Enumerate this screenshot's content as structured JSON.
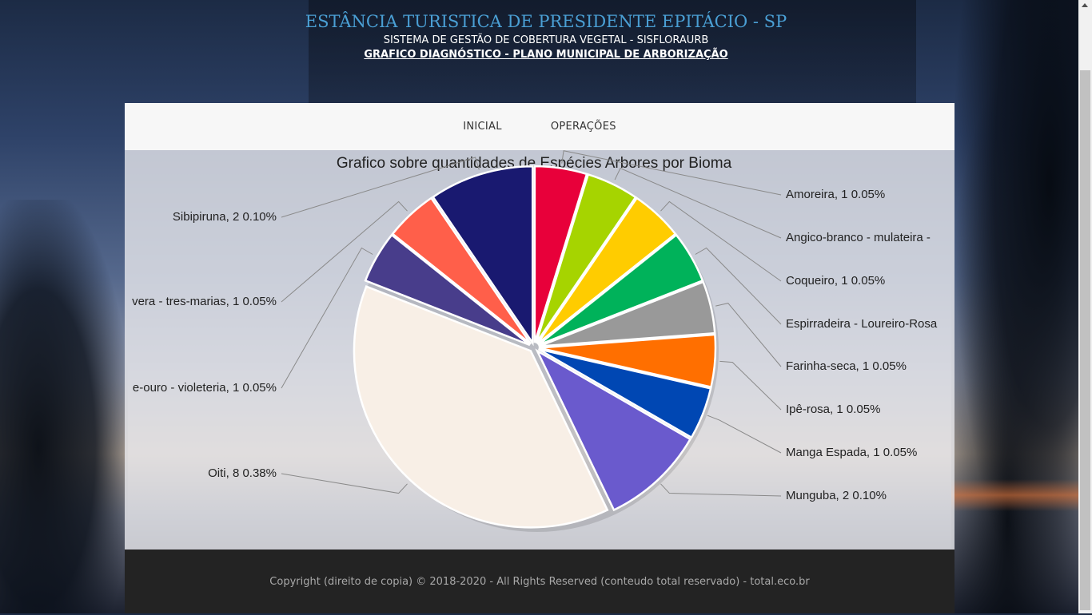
{
  "header": {
    "site_title": "ESTÂNCIA TURISTICA DE PRESIDENTE EPITÁCIO - SP",
    "system_name": "SISTEMA DE GESTÃO DE COBERTURA VEGETAL - SISFLORAURB",
    "page_subtitle": "GRAFICO DIAGNÓSTICO - PLANO MUNICIPAL DE ARBORIZAÇÃO"
  },
  "nav": {
    "items": [
      {
        "label": "INICIAL"
      },
      {
        "label": "OPERAÇÕES"
      }
    ]
  },
  "footer": {
    "copyright": "Copyright (direito de copia) © 2018-2020 - All Rights Reserved (conteudo total reservado) - total.eco.br"
  },
  "chart_data": {
    "type": "pie",
    "title": "Grafico sobre quantidades de Espécies Arbores por Bioma",
    "slices": [
      {
        "label": "Amoreira, 1 0.05%",
        "value": 1,
        "color": "#e8003a"
      },
      {
        "label": "Angico-branco - mulateira - ",
        "value": 1,
        "color": "#a6d400"
      },
      {
        "label": "Coqueiro, 1 0.05%",
        "value": 1,
        "color": "#ffcc00"
      },
      {
        "label": "Espirradeira - Loureiro-Rosa",
        "value": 1,
        "color": "#00b25a"
      },
      {
        "label": "Farinha-seca, 1 0.05%",
        "value": 1,
        "color": "#999999"
      },
      {
        "label": "Ipê-rosa, 1 0.05%",
        "value": 1,
        "color": "#ff6f00"
      },
      {
        "label": "Manga Espada, 1 0.05%",
        "value": 1,
        "color": "#0047b3"
      },
      {
        "label": "Munguba, 2 0.10%",
        "value": 2,
        "color": "#6a5acd"
      },
      {
        "label": "Oiti, 8 0.38%",
        "value": 8,
        "color": "#f8efe6"
      },
      {
        "label": "e-ouro - violeteria, 1 0.05%",
        "value": 1,
        "color": "#483d8b"
      },
      {
        "label": "vera - tres-marias, 1 0.05%",
        "value": 1,
        "color": "#ff5f4a"
      },
      {
        "label": "Sibipiruna, 2 0.10%",
        "value": 2,
        "color": "#191970"
      }
    ]
  }
}
